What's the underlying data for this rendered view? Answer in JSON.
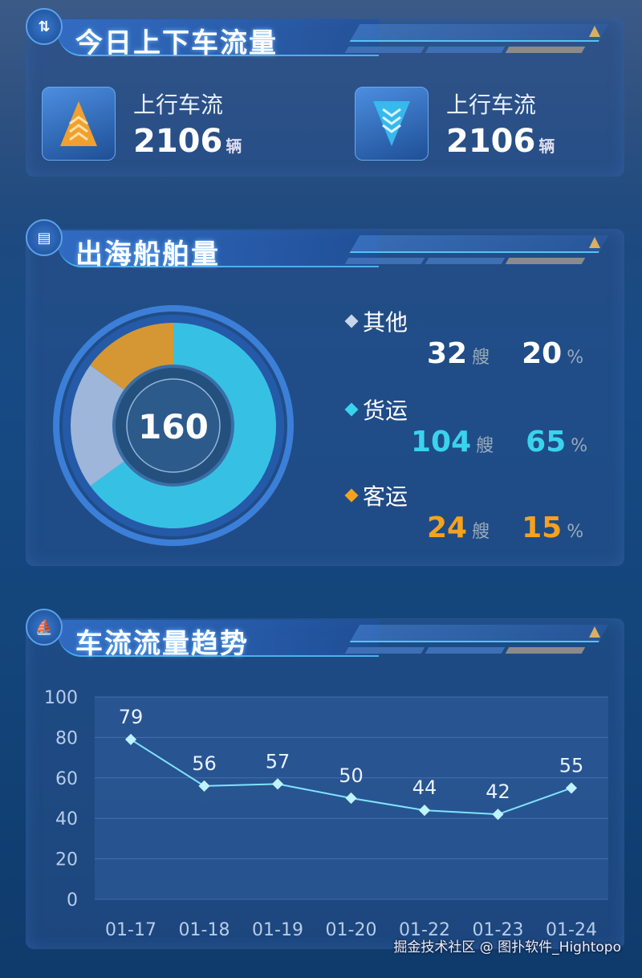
{
  "traffic": {
    "title": "今日上下车流量",
    "icon": "up-down-arrows-icon",
    "items": [
      {
        "label": "上行车流",
        "value": "2106",
        "unit": "辆",
        "icon": "chevron-up-icon"
      },
      {
        "label": "上行车流",
        "value": "2106",
        "unit": "辆",
        "icon": "chevron-down-icon"
      }
    ]
  },
  "ships": {
    "title": "出海船舶量",
    "icon": "ship-document-icon",
    "total": "160",
    "items": [
      {
        "name": "其他",
        "count": "32",
        "unit": "艘",
        "percent": "20",
        "pct_unit": "%",
        "color": "#c7d6ea",
        "value": 20
      },
      {
        "name": "货运",
        "count": "104",
        "unit": "艘",
        "percent": "65",
        "pct_unit": "%",
        "color": "#3ad3ee",
        "value": 65
      },
      {
        "name": "客运",
        "count": "24",
        "unit": "艘",
        "percent": "15",
        "pct_unit": "%",
        "color": "#f5a21e",
        "value": 15
      }
    ]
  },
  "trend": {
    "title": "车流流量趋势",
    "icon": "sail-icon"
  },
  "chart_data": {
    "type": "line",
    "categories": [
      "01-17",
      "01-18",
      "01-19",
      "01-20",
      "01-22",
      "01-23",
      "01-24"
    ],
    "values": [
      79,
      56,
      57,
      50,
      44,
      42,
      55
    ],
    "ylim": [
      0,
      100
    ],
    "yticks": [
      "0",
      "20",
      "40",
      "60",
      "80",
      "100"
    ],
    "grid": true,
    "color": "#7fe3ff"
  },
  "watermark": "掘金技术社区 @ 图扑软件_Hightopo"
}
